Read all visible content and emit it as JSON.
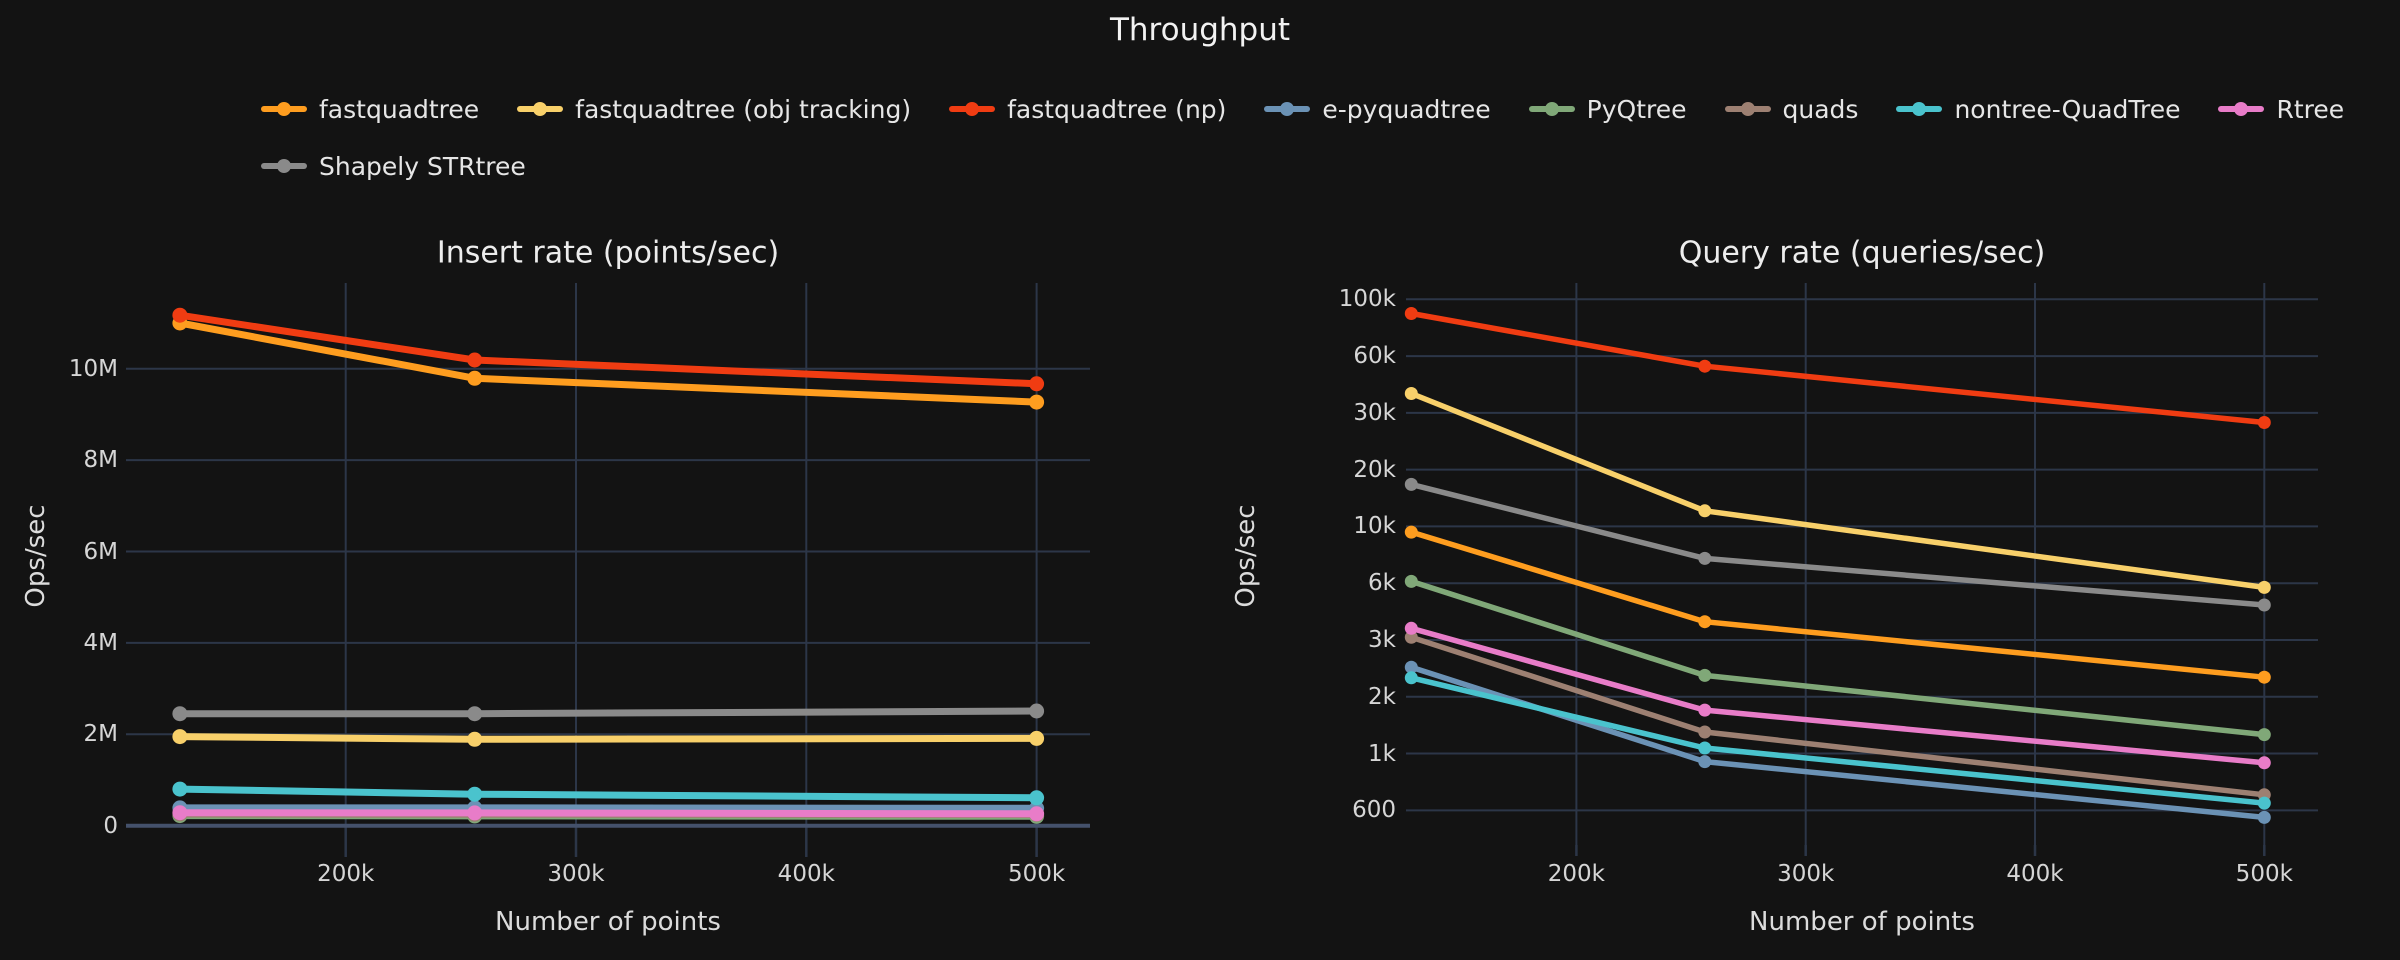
{
  "title": "Throughput",
  "colors": {
    "background": "#131313",
    "grid": "#2c3648",
    "axis_line": "#44516b",
    "text": "#e6e6e6"
  },
  "legend": {
    "items": [
      {
        "label": "fastquadtree",
        "color": "#fe9d1f"
      },
      {
        "label": "fastquadtree (obj tracking)",
        "color": "#f8d06a"
      },
      {
        "label": "fastquadtree (np)",
        "color": "#f03c12"
      },
      {
        "label": "e-pyquadtree",
        "color": "#6b92b5"
      },
      {
        "label": "PyQtree",
        "color": "#80a878"
      },
      {
        "label": "quads",
        "color": "#9d8072"
      },
      {
        "label": "nontree-QuadTree",
        "color": "#4ac3cd"
      },
      {
        "label": "Rtree",
        "color": "#e87cc8"
      },
      {
        "label": "Shapely STRtree",
        "color": "#8a8a8a"
      }
    ]
  },
  "chart_data": [
    {
      "type": "line",
      "title": "Insert rate (points/sec)",
      "xlabel": "Number of points",
      "ylabel": "Ops/sec",
      "y_scale": "linear",
      "ylim": [
        0,
        11800000
      ],
      "grid": true,
      "x": [
        128000,
        256000,
        500000
      ],
      "x_ticks": [
        {
          "v": 200000,
          "label": "200k"
        },
        {
          "v": 300000,
          "label": "300k"
        },
        {
          "v": 400000,
          "label": "400k"
        },
        {
          "v": 500000,
          "label": "500k"
        }
      ],
      "y_ticks": [
        {
          "v": 0,
          "label": "0"
        },
        {
          "v": 2000000,
          "label": "2M"
        },
        {
          "v": 4000000,
          "label": "4M"
        },
        {
          "v": 6000000,
          "label": "6M"
        },
        {
          "v": 8000000,
          "label": "8M"
        },
        {
          "v": 10000000,
          "label": "10M"
        }
      ],
      "series": [
        {
          "name": "fastquadtree",
          "color": "#fe9d1f",
          "values": [
            11000000,
            9790000,
            9270000
          ]
        },
        {
          "name": "fastquadtree (obj tracking)",
          "color": "#f8d06a",
          "values": [
            1950000,
            1890000,
            1910000
          ]
        },
        {
          "name": "fastquadtree (np)",
          "color": "#f03c12",
          "values": [
            11170000,
            10190000,
            9670000
          ]
        },
        {
          "name": "e-pyquadtree",
          "color": "#6b92b5",
          "values": [
            390000,
            390000,
            380000
          ]
        },
        {
          "name": "PyQtree",
          "color": "#80a878",
          "values": [
            220000,
            215000,
            205000
          ]
        },
        {
          "name": "quads",
          "color": "#9d8072",
          "values": [
            255000,
            250000,
            245000
          ]
        },
        {
          "name": "nontree-QuadTree",
          "color": "#4ac3cd",
          "values": [
            800000,
            690000,
            610000
          ]
        },
        {
          "name": "Rtree",
          "color": "#e87cc8",
          "values": [
            285000,
            280000,
            260000
          ]
        },
        {
          "name": "Shapely STRtree",
          "color": "#8a8a8a",
          "values": [
            2450000,
            2450000,
            2510000
          ]
        }
      ]
    },
    {
      "type": "line",
      "title": "Query rate (queries/sec)",
      "xlabel": "Number of points",
      "ylabel": "Ops/sec",
      "y_scale": "log-custom",
      "ylim": [
        550,
        110000
      ],
      "grid": true,
      "x": [
        128000,
        256000,
        500000
      ],
      "x_ticks": [
        {
          "v": 200000,
          "label": "200k"
        },
        {
          "v": 300000,
          "label": "300k"
        },
        {
          "v": 400000,
          "label": "400k"
        },
        {
          "v": 500000,
          "label": "500k"
        }
      ],
      "y_ticks": [
        {
          "v": 100000,
          "label": "100k"
        },
        {
          "v": 60000,
          "label": "60k"
        },
        {
          "v": 30000,
          "label": "30k"
        },
        {
          "v": 20000,
          "label": "20k"
        },
        {
          "v": 10000,
          "label": "10k"
        },
        {
          "v": 6000,
          "label": "6k"
        },
        {
          "v": 3000,
          "label": "3k"
        },
        {
          "v": 2000,
          "label": "2k"
        },
        {
          "v": 1000,
          "label": "1k"
        },
        {
          "v": 600,
          "label": "600"
        }
      ],
      "series": [
        {
          "name": "fastquadtree",
          "color": "#fe9d1f",
          "values": [
            9500,
            3750,
            2300
          ]
        },
        {
          "name": "fastquadtree (obj tracking)",
          "color": "#f8d06a",
          "values": [
            38000,
            12100,
            5700
          ]
        },
        {
          "name": "fastquadtree (np)",
          "color": "#f03c12",
          "values": [
            88000,
            53000,
            28000
          ]
        },
        {
          "name": "e-pyquadtree",
          "color": "#6b92b5",
          "values": [
            2470,
            930,
            550
          ]
        },
        {
          "name": "PyQtree",
          "color": "#80a878",
          "values": [
            6100,
            2330,
            1260
          ]
        },
        {
          "name": "quads",
          "color": "#9d8072",
          "values": [
            3100,
            1300,
            690
          ]
        },
        {
          "name": "nontree-QuadTree",
          "color": "#4ac3cd",
          "values": [
            2290,
            1070,
            640
          ]
        },
        {
          "name": "Rtree",
          "color": "#e87cc8",
          "values": [
            3460,
            1700,
            920
          ]
        },
        {
          "name": "Shapely STRtree",
          "color": "#8a8a8a",
          "values": [
            16700,
            7500,
            4600
          ]
        }
      ]
    }
  ]
}
